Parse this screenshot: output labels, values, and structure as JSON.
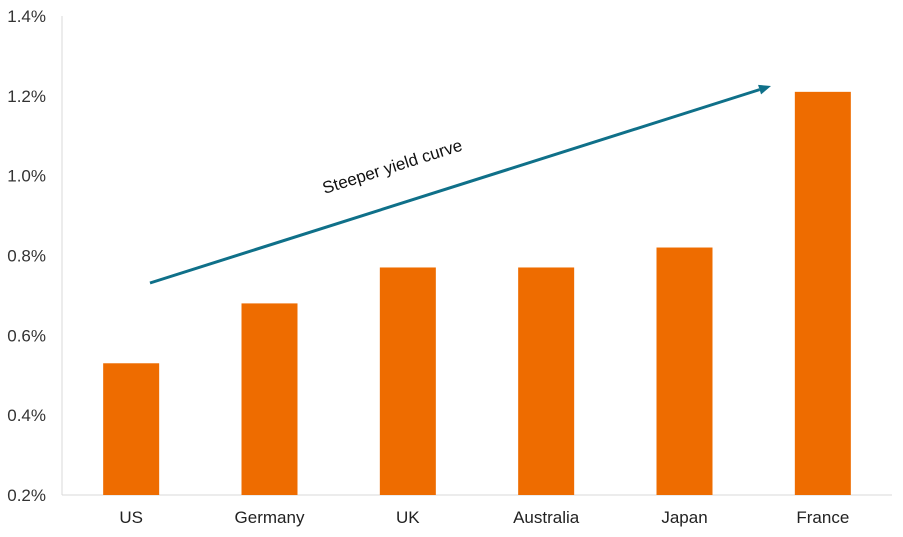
{
  "chart_data": {
    "type": "bar",
    "categories": [
      "US",
      "Germany",
      "UK",
      "Australia",
      "Japan",
      "France"
    ],
    "values": [
      0.53,
      0.68,
      0.77,
      0.77,
      0.82,
      1.21
    ],
    "y_tick_labels": [
      "0.2%",
      "0.4%",
      "0.6%",
      "0.8%",
      "1.0%",
      "1.2%",
      "1.4%"
    ],
    "ylim": [
      0.2,
      1.4
    ],
    "grid": false,
    "bar_color": "#EE6C00",
    "annotation": {
      "text": "Steeper yield curve",
      "arrow_color": "#0F7089"
    }
  }
}
